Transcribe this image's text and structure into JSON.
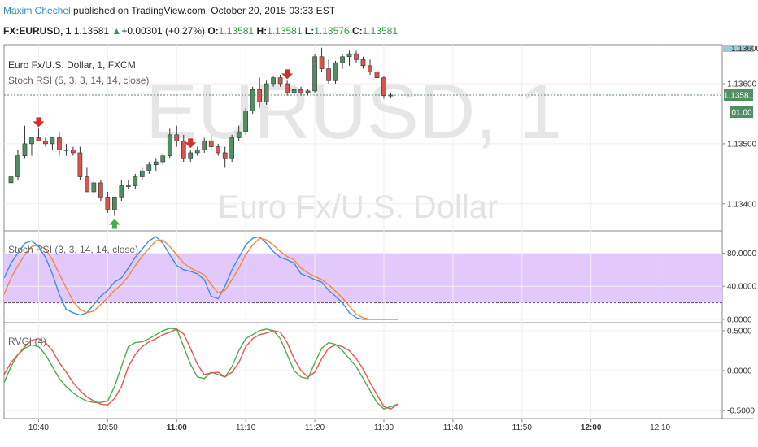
{
  "header": {
    "author": "Maxim  Chechel",
    "published": " published on TradingView.com, October 20, 2015 03:33 EST"
  },
  "symbol_bar": {
    "symbol": "FX:EURUSD, 1",
    "last": "1.13581",
    "change": "+0.00301 (+0.27%)",
    "o_label": "O:",
    "o": "1.13581",
    "h_label": "H:",
    "h": "1.13581",
    "l_label": "L:",
    "l": "1.13576",
    "c_label": "C:",
    "c": "1.13581"
  },
  "watermark": {
    "main": "EURUSD, 1",
    "sub": "Euro Fx/U.S. Dollar"
  },
  "legend": {
    "title": "Euro Fx/U.S. Dollar, 1, FXCM",
    "study": "Stoch RSI (5, 3, 3, 14, 14, close)",
    "stoch": "Stoch RSI (3, 3, 14, 14, close)",
    "rvgi": "RVGI (4)"
  },
  "price_tags": {
    "last": "1.13581",
    "timer": "01:00",
    "top": "1.13600"
  },
  "colors": {
    "up": "#4f8f62",
    "down": "#d9534f",
    "k_line": "#3d8fe0",
    "d_line": "#f08a3c",
    "rvgi_a": "#4cae4c",
    "rvgi_b": "#e8554e",
    "band": "#e3c9fb",
    "last": "#4f8f62"
  },
  "chart_data": [
    {
      "type": "candlestick",
      "y_ticks": [
        "1.13600",
        "1.13500",
        "1.13400"
      ],
      "y_tick_values": [
        1.136,
        1.135,
        1.134
      ],
      "ylim": [
        1.13355,
        1.13665
      ],
      "x_ticks": [
        "10:40",
        "10:50",
        "11:00",
        "11:10",
        "11:20",
        "11:30",
        "11:40",
        "11:50",
        "12:00",
        "12:10"
      ],
      "x_tick_minutes": [
        40,
        50,
        60,
        70,
        80,
        90,
        100,
        110,
        120,
        130
      ],
      "xlim_minutes": [
        35,
        139
      ],
      "candles": [
        [
          36,
          1.13435,
          1.1345,
          1.1343,
          1.13445
        ],
        [
          37,
          1.13445,
          1.1349,
          1.1344,
          1.1348
        ],
        [
          38,
          1.1348,
          1.1353,
          1.13475,
          1.135
        ],
        [
          39,
          1.135,
          1.1351,
          1.1348,
          1.1351
        ],
        [
          40,
          1.1351,
          1.13525,
          1.13505,
          1.13505
        ],
        [
          41,
          1.13505,
          1.1351,
          1.13495,
          1.135
        ],
        [
          42,
          1.135,
          1.13512,
          1.1349,
          1.1351
        ],
        [
          43,
          1.1351,
          1.1352,
          1.1348,
          1.1349
        ],
        [
          44,
          1.1349,
          1.135,
          1.1348,
          1.1349
        ],
        [
          45,
          1.1349,
          1.13495,
          1.1348,
          1.13485
        ],
        [
          46,
          1.13485,
          1.13495,
          1.1344,
          1.13445
        ],
        [
          47,
          1.13445,
          1.1346,
          1.1342,
          1.1342
        ],
        [
          48,
          1.1342,
          1.1344,
          1.13415,
          1.13435
        ],
        [
          49,
          1.13435,
          1.1344,
          1.13405,
          1.1341
        ],
        [
          50,
          1.1341,
          1.1342,
          1.13385,
          1.1339
        ],
        [
          51,
          1.1339,
          1.13412,
          1.1338,
          1.1341
        ],
        [
          52,
          1.1341,
          1.1344,
          1.13405,
          1.1343
        ],
        [
          53,
          1.1343,
          1.1344,
          1.13425,
          1.1343
        ],
        [
          54,
          1.1343,
          1.1345,
          1.13425,
          1.13445
        ],
        [
          55,
          1.13445,
          1.1346,
          1.1344,
          1.13455
        ],
        [
          56,
          1.13455,
          1.1347,
          1.1345,
          1.13465
        ],
        [
          57,
          1.13465,
          1.13475,
          1.13455,
          1.1347
        ],
        [
          58,
          1.1347,
          1.13485,
          1.13465,
          1.1348
        ],
        [
          59,
          1.1348,
          1.13525,
          1.13475,
          1.13515
        ],
        [
          60,
          1.13515,
          1.1353,
          1.13495,
          1.13505
        ],
        [
          61,
          1.13505,
          1.13515,
          1.1347,
          1.13475
        ],
        [
          62,
          1.13475,
          1.1349,
          1.1347,
          1.13485
        ],
        [
          63,
          1.13485,
          1.13495,
          1.1348,
          1.1349
        ],
        [
          64,
          1.1349,
          1.1351,
          1.13485,
          1.13505
        ],
        [
          65,
          1.13505,
          1.13515,
          1.1349,
          1.13495
        ],
        [
          66,
          1.13495,
          1.135,
          1.1348,
          1.13485
        ],
        [
          67,
          1.13485,
          1.13495,
          1.1346,
          1.13475
        ],
        [
          68,
          1.13475,
          1.13515,
          1.1347,
          1.1351
        ],
        [
          69,
          1.1351,
          1.1353,
          1.13505,
          1.1352
        ],
        [
          70,
          1.1352,
          1.1356,
          1.13515,
          1.13555
        ],
        [
          71,
          1.13555,
          1.13595,
          1.1355,
          1.1359
        ],
        [
          72,
          1.1359,
          1.1361,
          1.1356,
          1.1357
        ],
        [
          73,
          1.1357,
          1.13605,
          1.13565,
          1.136
        ],
        [
          74,
          1.136,
          1.13612,
          1.13595,
          1.1361
        ],
        [
          75,
          1.1361,
          1.13615,
          1.13595,
          1.136
        ],
        [
          76,
          1.136,
          1.13605,
          1.1358,
          1.13585
        ],
        [
          77,
          1.13585,
          1.136,
          1.1358,
          1.1359
        ],
        [
          78,
          1.1359,
          1.13595,
          1.1358,
          1.13585
        ],
        [
          79,
          1.13585,
          1.13592,
          1.1358,
          1.13588
        ],
        [
          80,
          1.13588,
          1.1365,
          1.13585,
          1.13645
        ],
        [
          81,
          1.13645,
          1.1366,
          1.1362,
          1.13625
        ],
        [
          82,
          1.13625,
          1.1364,
          1.136,
          1.13605
        ],
        [
          83,
          1.13605,
          1.13638,
          1.136,
          1.13635
        ],
        [
          84,
          1.13635,
          1.1365,
          1.13625,
          1.13645
        ],
        [
          85,
          1.13645,
          1.13655,
          1.1363,
          1.1365
        ],
        [
          86,
          1.1365,
          1.13655,
          1.13635,
          1.1364
        ],
        [
          87,
          1.1364,
          1.13645,
          1.13625,
          1.1363
        ],
        [
          88,
          1.1363,
          1.1364,
          1.13615,
          1.1362
        ],
        [
          89,
          1.1362,
          1.13625,
          1.13605,
          1.1361
        ],
        [
          90,
          1.1361,
          1.13612,
          1.13575,
          1.1358
        ],
        [
          91,
          1.1358,
          1.13585,
          1.13576,
          1.13581
        ]
      ],
      "markers": [
        {
          "type": "sell",
          "minute": 40
        },
        {
          "type": "buy",
          "minute": 51
        },
        {
          "type": "sell",
          "minute": 62
        },
        {
          "type": "sell",
          "minute": 76
        }
      ],
      "last_price": 1.13581
    },
    {
      "type": "line",
      "title": "Stoch RSI (3, 3, 14, 14, close)",
      "y_ticks": [
        "80.0000",
        "40.0000",
        "0.0000"
      ],
      "y_tick_values": [
        80,
        40,
        0
      ],
      "ylim": [
        -4,
        107
      ],
      "bands": [
        20,
        80
      ],
      "x_minutes": [
        35,
        36,
        37,
        38,
        39,
        40,
        41,
        42,
        43,
        44,
        45,
        46,
        47,
        48,
        49,
        50,
        51,
        52,
        53,
        54,
        55,
        56,
        57,
        58,
        59,
        60,
        61,
        62,
        63,
        64,
        65,
        66,
        67,
        68,
        69,
        70,
        71,
        72,
        73,
        74,
        75,
        76,
        77,
        78,
        79,
        80,
        81,
        82,
        83,
        84,
        85,
        86,
        87,
        88,
        89,
        90,
        91,
        92
      ],
      "series": [
        {
          "values": [
            50,
            68,
            80,
            92,
            95,
            88,
            75,
            55,
            30,
            12,
            8,
            5,
            8,
            18,
            28,
            35,
            45,
            50,
            62,
            75,
            85,
            95,
            100,
            92,
            78,
            65,
            60,
            58,
            55,
            48,
            28,
            25,
            40,
            60,
            75,
            90,
            98,
            100,
            92,
            82,
            75,
            72,
            68,
            55,
            52,
            48,
            45,
            35,
            28,
            20,
            8,
            2,
            0,
            0,
            0,
            0,
            0,
            0
          ]
        },
        {
          "values": [
            30,
            50,
            65,
            78,
            88,
            90,
            85,
            72,
            55,
            38,
            22,
            12,
            8,
            10,
            18,
            26,
            35,
            42,
            52,
            65,
            76,
            86,
            95,
            96,
            88,
            78,
            68,
            62,
            58,
            54,
            42,
            32,
            35,
            48,
            62,
            78,
            90,
            98,
            96,
            90,
            82,
            76,
            72,
            62,
            56,
            52,
            48,
            42,
            34,
            26,
            16,
            6,
            2,
            0,
            0,
            0,
            0,
            0
          ]
        }
      ]
    },
    {
      "type": "line",
      "title": "RVGI (4)",
      "y_ticks": [
        "0.5000",
        "0.0000",
        "-0.5000"
      ],
      "y_tick_values": [
        0.5,
        0,
        -0.5
      ],
      "ylim": [
        -0.6,
        0.6
      ],
      "x_minutes": [
        35,
        36,
        37,
        38,
        39,
        40,
        41,
        42,
        43,
        44,
        45,
        46,
        47,
        48,
        49,
        50,
        51,
        52,
        53,
        54,
        55,
        56,
        57,
        58,
        59,
        60,
        61,
        62,
        63,
        64,
        65,
        66,
        67,
        68,
        69,
        70,
        71,
        72,
        73,
        74,
        75,
        76,
        77,
        78,
        79,
        80,
        81,
        82,
        83,
        84,
        85,
        86,
        87,
        88,
        89,
        90,
        91,
        92
      ],
      "series": [
        {
          "values": [
            -0.15,
            0.05,
            0.2,
            0.28,
            0.32,
            0.3,
            0.2,
            0.05,
            -0.1,
            -0.2,
            -0.28,
            -0.34,
            -0.38,
            -0.4,
            -0.4,
            -0.38,
            -0.2,
            0.05,
            0.3,
            0.35,
            0.36,
            0.4,
            0.45,
            0.5,
            0.53,
            0.52,
            0.3,
            0.08,
            -0.08,
            -0.1,
            -0.02,
            -0.05,
            -0.08,
            0.05,
            0.25,
            0.4,
            0.45,
            0.5,
            0.52,
            0.5,
            0.4,
            0.2,
            0.0,
            -0.08,
            -0.1,
            0.1,
            0.28,
            0.35,
            0.33,
            0.25,
            0.15,
            0.05,
            -0.1,
            -0.25,
            -0.4,
            -0.48,
            -0.45,
            -0.42
          ]
        },
        {
          "values": [
            -0.05,
            0.1,
            0.2,
            0.3,
            0.38,
            0.4,
            0.35,
            0.25,
            0.1,
            -0.02,
            -0.15,
            -0.25,
            -0.33,
            -0.38,
            -0.42,
            -0.43,
            -0.35,
            -0.2,
            0.05,
            0.2,
            0.3,
            0.36,
            0.4,
            0.45,
            0.48,
            0.52,
            0.46,
            0.28,
            0.08,
            -0.05,
            -0.03,
            -0.02,
            -0.08,
            -0.02,
            0.1,
            0.3,
            0.4,
            0.45,
            0.47,
            0.5,
            0.48,
            0.35,
            0.15,
            0.0,
            -0.08,
            -0.02,
            0.15,
            0.28,
            0.32,
            0.3,
            0.25,
            0.15,
            0.02,
            -0.15,
            -0.3,
            -0.45,
            -0.48,
            -0.42
          ]
        }
      ]
    }
  ]
}
